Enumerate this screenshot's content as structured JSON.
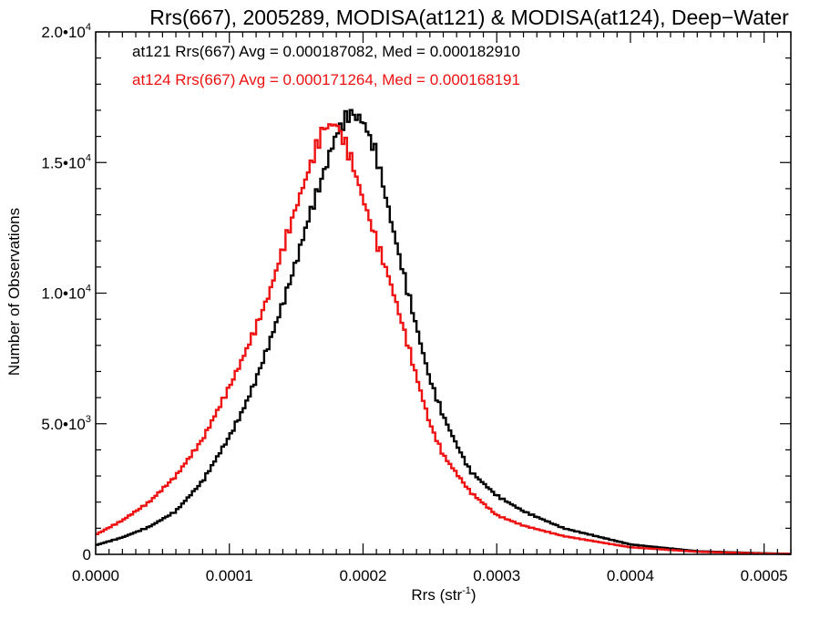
{
  "chart_data": {
    "type": "line",
    "title": "Rrs(667), 2005289, MODISA(at121) & MODISA(at124), Deep−Water",
    "xlabel": "Rrs (str",
    "xlabel_sup": "-1",
    "xlabel_close": ")",
    "ylabel": "Number of Observations",
    "xlim": [
      0,
      0.00052
    ],
    "ylim": [
      0,
      20000
    ],
    "x_ticks": [
      {
        "value": 0.0,
        "label": "0.0000"
      },
      {
        "value": 0.0001,
        "label": "0.0001"
      },
      {
        "value": 0.0002,
        "label": "0.0002"
      },
      {
        "value": 0.0003,
        "label": "0.0003"
      },
      {
        "value": 0.0004,
        "label": "0.0004"
      },
      {
        "value": 0.0005,
        "label": "0.0005"
      }
    ],
    "y_ticks": [
      {
        "value": 0,
        "mantissa": "0",
        "exp": ""
      },
      {
        "value": 5000,
        "mantissa": "5.0•10",
        "exp": "3"
      },
      {
        "value": 10000,
        "mantissa": "1.0•10",
        "exp": "4"
      },
      {
        "value": 15000,
        "mantissa": "1.5•10",
        "exp": "4"
      },
      {
        "value": 20000,
        "mantissa": "2.0•10",
        "exp": "4"
      }
    ],
    "grid": false,
    "legend_position": "top-left",
    "series": [
      {
        "name": "at121 Rrs(667) Avg = 0.000187082, Med = 0.000182910",
        "color": "#000000",
        "x": [
          0,
          2e-05,
          4e-05,
          6e-05,
          8e-05,
          0.0001,
          0.00011,
          0.00012,
          0.00013,
          0.00014,
          0.00015,
          0.00016,
          0.00017,
          0.00018,
          0.00019,
          0.0002,
          0.00021,
          0.00022,
          0.00023,
          0.00024,
          0.00025,
          0.00026,
          0.00027,
          0.00028,
          0.0003,
          0.00032,
          0.00035,
          0.0004,
          0.00045,
          0.0005,
          0.00052
        ],
        "y": [
          350,
          650,
          1050,
          1650,
          2800,
          4500,
          5500,
          6700,
          8100,
          9600,
          11200,
          13000,
          14500,
          16100,
          16900,
          16600,
          15300,
          13000,
          10800,
          8700,
          6700,
          5300,
          4200,
          3200,
          2250,
          1650,
          1000,
          380,
          120,
          40,
          20
        ]
      },
      {
        "name": "at124 Rrs(667) Avg = 0.000171264, Med = 0.000168191",
        "color": "#ee1111",
        "x": [
          0,
          2e-05,
          4e-05,
          6e-05,
          8e-05,
          0.0001,
          0.00011,
          0.00012,
          0.00013,
          0.00014,
          0.00015,
          0.00016,
          0.00017,
          0.00018,
          0.00019,
          0.0002,
          0.00021,
          0.00022,
          0.00023,
          0.00024,
          0.00025,
          0.00026,
          0.00027,
          0.00028,
          0.0003,
          0.00032,
          0.00035,
          0.0004,
          0.00045,
          0.0005,
          0.00052
        ],
        "y": [
          750,
          1300,
          2000,
          3000,
          4400,
          6400,
          7500,
          8700,
          10000,
          11700,
          13300,
          14800,
          16300,
          16500,
          15300,
          13600,
          12000,
          10500,
          8700,
          6800,
          5000,
          3800,
          3100,
          2400,
          1500,
          1100,
          700,
          270,
          100,
          30,
          15
        ]
      }
    ]
  }
}
